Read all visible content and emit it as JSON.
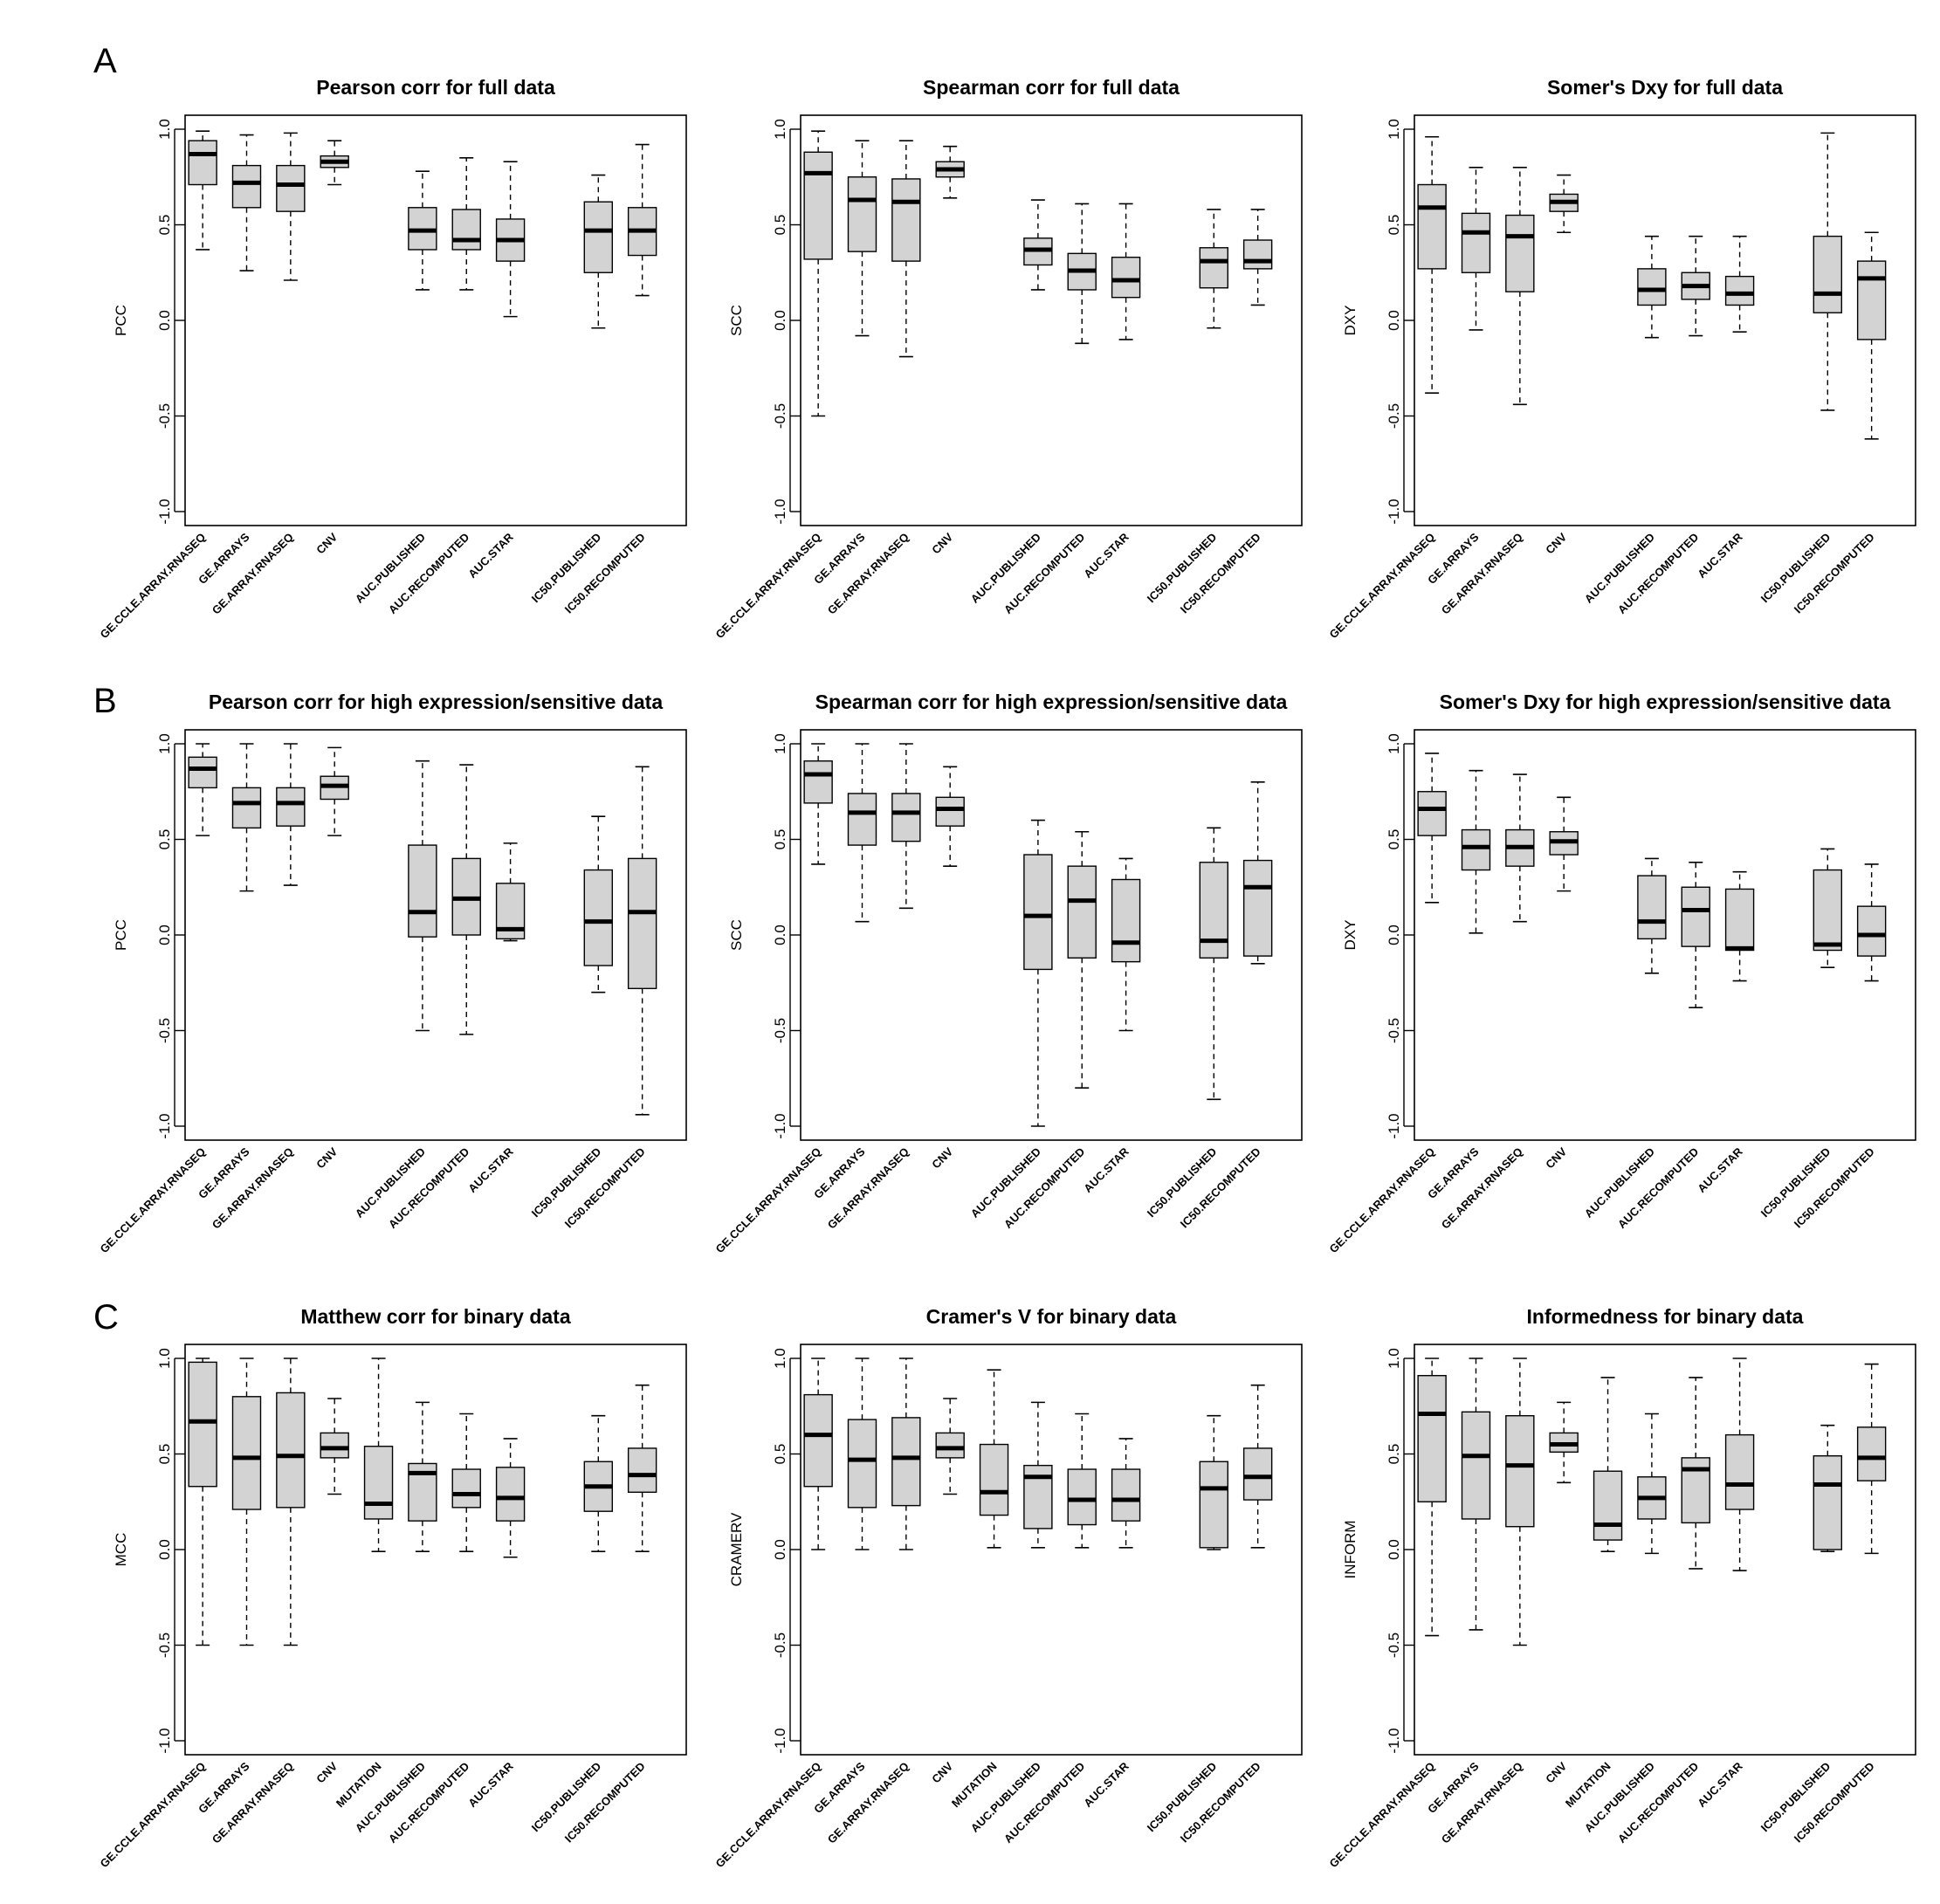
{
  "panels": [
    "A",
    "B",
    "C"
  ],
  "box_style": {
    "fill": "#d3d3d3",
    "stroke": "#000000"
  },
  "chart_data": [
    {
      "type": "boxplot",
      "title": "Pearson corr for full data",
      "ylabel": "PCC",
      "ylim": [
        -1.0,
        1.0
      ],
      "yticks": [
        "-1.0",
        "-0.5",
        "0.0",
        "0.5",
        "1.0"
      ],
      "ytick_values": [
        -1.0,
        -0.5,
        0.0,
        0.5,
        1.0
      ],
      "boxes": [
        {
          "label": "GE.CCLE.ARRAY.RNASEQ",
          "pos": 1,
          "min": 0.37,
          "q1": 0.71,
          "median": 0.87,
          "q3": 0.94,
          "max": 0.99
        },
        {
          "label": "GE.ARRAYS",
          "pos": 2,
          "min": 0.26,
          "q1": 0.59,
          "median": 0.72,
          "q3": 0.81,
          "max": 0.97
        },
        {
          "label": "GE.ARRAY.RNASEQ",
          "pos": 3,
          "min": 0.21,
          "q1": 0.57,
          "median": 0.71,
          "q3": 0.81,
          "max": 0.98
        },
        {
          "label": "CNV",
          "pos": 4,
          "min": 0.71,
          "q1": 0.8,
          "median": 0.83,
          "q3": 0.86,
          "max": 0.94
        },
        {
          "label": "AUC.PUBLISHED",
          "pos": 6,
          "min": 0.16,
          "q1": 0.37,
          "median": 0.47,
          "q3": 0.59,
          "max": 0.78
        },
        {
          "label": "AUC.RECOMPUTED",
          "pos": 7,
          "min": 0.16,
          "q1": 0.37,
          "median": 0.42,
          "q3": 0.58,
          "max": 0.85
        },
        {
          "label": "AUC.STAR",
          "pos": 8,
          "min": 0.02,
          "q1": 0.31,
          "median": 0.42,
          "q3": 0.53,
          "max": 0.83
        },
        {
          "label": "IC50.PUBLISHED",
          "pos": 10,
          "min": -0.04,
          "q1": 0.25,
          "median": 0.47,
          "q3": 0.62,
          "max": 0.76
        },
        {
          "label": "IC50.RECOMPUTED",
          "pos": 11,
          "min": 0.13,
          "q1": 0.34,
          "median": 0.47,
          "q3": 0.59,
          "max": 0.92
        }
      ]
    },
    {
      "type": "boxplot",
      "title": "Spearman corr for full data",
      "ylabel": "SCC",
      "ylim": [
        -1.0,
        1.0
      ],
      "yticks": [
        "-1.0",
        "-0.5",
        "0.0",
        "0.5",
        "1.0"
      ],
      "ytick_values": [
        -1.0,
        -0.5,
        0.0,
        0.5,
        1.0
      ],
      "boxes": [
        {
          "label": "GE.CCLE.ARRAY.RNASEQ",
          "pos": 1,
          "min": -0.5,
          "q1": 0.32,
          "median": 0.77,
          "q3": 0.88,
          "max": 0.99
        },
        {
          "label": "GE.ARRAYS",
          "pos": 2,
          "min": -0.08,
          "q1": 0.36,
          "median": 0.63,
          "q3": 0.75,
          "max": 0.94
        },
        {
          "label": "GE.ARRAY.RNASEQ",
          "pos": 3,
          "min": -0.19,
          "q1": 0.31,
          "median": 0.62,
          "q3": 0.74,
          "max": 0.94
        },
        {
          "label": "CNV",
          "pos": 4,
          "min": 0.64,
          "q1": 0.75,
          "median": 0.79,
          "q3": 0.83,
          "max": 0.91
        },
        {
          "label": "AUC.PUBLISHED",
          "pos": 6,
          "min": 0.16,
          "q1": 0.29,
          "median": 0.37,
          "q3": 0.43,
          "max": 0.63
        },
        {
          "label": "AUC.RECOMPUTED",
          "pos": 7,
          "min": -0.12,
          "q1": 0.16,
          "median": 0.26,
          "q3": 0.35,
          "max": 0.61
        },
        {
          "label": "AUC.STAR",
          "pos": 8,
          "min": -0.1,
          "q1": 0.12,
          "median": 0.21,
          "q3": 0.33,
          "max": 0.61
        },
        {
          "label": "IC50.PUBLISHED",
          "pos": 10,
          "min": -0.04,
          "q1": 0.17,
          "median": 0.31,
          "q3": 0.38,
          "max": 0.58
        },
        {
          "label": "IC50.RECOMPUTED",
          "pos": 11,
          "min": 0.08,
          "q1": 0.27,
          "median": 0.31,
          "q3": 0.42,
          "max": 0.58
        }
      ]
    },
    {
      "type": "boxplot",
      "title": "Somer's Dxy for full data",
      "ylabel": "DXY",
      "ylim": [
        -1.0,
        1.0
      ],
      "yticks": [
        "-1.0",
        "-0.5",
        "0.0",
        "0.5",
        "1.0"
      ],
      "ytick_values": [
        -1.0,
        -0.5,
        0.0,
        0.5,
        1.0
      ],
      "boxes": [
        {
          "label": "GE.CCLE.ARRAY.RNASEQ",
          "pos": 1,
          "min": -0.38,
          "q1": 0.27,
          "median": 0.59,
          "q3": 0.71,
          "max": 0.96
        },
        {
          "label": "GE.ARRAYS",
          "pos": 2,
          "min": -0.05,
          "q1": 0.25,
          "median": 0.46,
          "q3": 0.56,
          "max": 0.8
        },
        {
          "label": "GE.ARRAY.RNASEQ",
          "pos": 3,
          "min": -0.44,
          "q1": 0.15,
          "median": 0.44,
          "q3": 0.55,
          "max": 0.8
        },
        {
          "label": "CNV",
          "pos": 4,
          "min": 0.46,
          "q1": 0.57,
          "median": 0.62,
          "q3": 0.66,
          "max": 0.76
        },
        {
          "label": "AUC.PUBLISHED",
          "pos": 6,
          "min": -0.09,
          "q1": 0.08,
          "median": 0.16,
          "q3": 0.27,
          "max": 0.44
        },
        {
          "label": "AUC.RECOMPUTED",
          "pos": 7,
          "min": -0.08,
          "q1": 0.11,
          "median": 0.18,
          "q3": 0.25,
          "max": 0.44
        },
        {
          "label": "AUC.STAR",
          "pos": 8,
          "min": -0.06,
          "q1": 0.08,
          "median": 0.14,
          "q3": 0.23,
          "max": 0.44
        },
        {
          "label": "IC50.PUBLISHED",
          "pos": 10,
          "min": -0.47,
          "q1": 0.04,
          "median": 0.14,
          "q3": 0.44,
          "max": 0.98
        },
        {
          "label": "IC50.RECOMPUTED",
          "pos": 11,
          "min": -0.62,
          "q1": -0.1,
          "median": 0.22,
          "q3": 0.31,
          "max": 0.46
        }
      ]
    },
    {
      "type": "boxplot",
      "title": "Pearson corr for high expression/sensitive data",
      "ylabel": "PCC",
      "ylim": [
        -1.0,
        1.0
      ],
      "yticks": [
        "-1.0",
        "-0.5",
        "0.0",
        "0.5",
        "1.0"
      ],
      "ytick_values": [
        -1.0,
        -0.5,
        0.0,
        0.5,
        1.0
      ],
      "boxes": [
        {
          "label": "GE.CCLE.ARRAY.RNASEQ",
          "pos": 1,
          "min": 0.52,
          "q1": 0.77,
          "median": 0.87,
          "q3": 0.93,
          "max": 1.0
        },
        {
          "label": "GE.ARRAYS",
          "pos": 2,
          "min": 0.23,
          "q1": 0.56,
          "median": 0.69,
          "q3": 0.77,
          "max": 1.0
        },
        {
          "label": "GE.ARRAY.RNASEQ",
          "pos": 3,
          "min": 0.26,
          "q1": 0.57,
          "median": 0.69,
          "q3": 0.77,
          "max": 1.0
        },
        {
          "label": "CNV",
          "pos": 4,
          "min": 0.52,
          "q1": 0.71,
          "median": 0.78,
          "q3": 0.83,
          "max": 0.98
        },
        {
          "label": "AUC.PUBLISHED",
          "pos": 6,
          "min": -0.5,
          "q1": -0.01,
          "median": 0.12,
          "q3": 0.47,
          "max": 0.91
        },
        {
          "label": "AUC.RECOMPUTED",
          "pos": 7,
          "min": -0.52,
          "q1": 0.0,
          "median": 0.19,
          "q3": 0.4,
          "max": 0.89
        },
        {
          "label": "AUC.STAR",
          "pos": 8,
          "min": -0.03,
          "q1": -0.02,
          "median": 0.03,
          "q3": 0.27,
          "max": 0.48
        },
        {
          "label": "IC50.PUBLISHED",
          "pos": 10,
          "min": -0.3,
          "q1": -0.16,
          "median": 0.07,
          "q3": 0.34,
          "max": 0.62
        },
        {
          "label": "IC50.RECOMPUTED",
          "pos": 11,
          "min": -0.94,
          "q1": -0.28,
          "median": 0.12,
          "q3": 0.4,
          "max": 0.88
        }
      ]
    },
    {
      "type": "boxplot",
      "title": "Spearman corr for high expression/sensitive data",
      "ylabel": "SCC",
      "ylim": [
        -1.0,
        1.0
      ],
      "yticks": [
        "-1.0",
        "-0.5",
        "0.0",
        "0.5",
        "1.0"
      ],
      "ytick_values": [
        -1.0,
        -0.5,
        0.0,
        0.5,
        1.0
      ],
      "boxes": [
        {
          "label": "GE.CCLE.ARRAY.RNASEQ",
          "pos": 1,
          "min": 0.37,
          "q1": 0.69,
          "median": 0.84,
          "q3": 0.91,
          "max": 1.0
        },
        {
          "label": "GE.ARRAYS",
          "pos": 2,
          "min": 0.07,
          "q1": 0.47,
          "median": 0.64,
          "q3": 0.74,
          "max": 1.0
        },
        {
          "label": "GE.ARRAY.RNASEQ",
          "pos": 3,
          "min": 0.14,
          "q1": 0.49,
          "median": 0.64,
          "q3": 0.74,
          "max": 1.0
        },
        {
          "label": "CNV",
          "pos": 4,
          "min": 0.36,
          "q1": 0.57,
          "median": 0.66,
          "q3": 0.72,
          "max": 0.88
        },
        {
          "label": "AUC.PUBLISHED",
          "pos": 6,
          "min": -1.0,
          "q1": -0.18,
          "median": 0.1,
          "q3": 0.42,
          "max": 0.6
        },
        {
          "label": "AUC.RECOMPUTED",
          "pos": 7,
          "min": -0.8,
          "q1": -0.12,
          "median": 0.18,
          "q3": 0.36,
          "max": 0.54
        },
        {
          "label": "AUC.STAR",
          "pos": 8,
          "min": -0.5,
          "q1": -0.14,
          "median": -0.04,
          "q3": 0.29,
          "max": 0.4
        },
        {
          "label": "IC50.PUBLISHED",
          "pos": 10,
          "min": -0.86,
          "q1": -0.12,
          "median": -0.03,
          "q3": 0.38,
          "max": 0.56
        },
        {
          "label": "IC50.RECOMPUTED",
          "pos": 11,
          "min": -0.15,
          "q1": -0.11,
          "median": 0.25,
          "q3": 0.39,
          "max": 0.8
        }
      ]
    },
    {
      "type": "boxplot",
      "title": "Somer's Dxy for high expression/sensitive data",
      "ylabel": "DXY",
      "ylim": [
        -1.0,
        1.0
      ],
      "yticks": [
        "-1.0",
        "-0.5",
        "0.0",
        "0.5",
        "1.0"
      ],
      "ytick_values": [
        -1.0,
        -0.5,
        0.0,
        0.5,
        1.0
      ],
      "boxes": [
        {
          "label": "GE.CCLE.ARRAY.RNASEQ",
          "pos": 1,
          "min": 0.17,
          "q1": 0.52,
          "median": 0.66,
          "q3": 0.75,
          "max": 0.95
        },
        {
          "label": "GE.ARRAYS",
          "pos": 2,
          "min": 0.01,
          "q1": 0.34,
          "median": 0.46,
          "q3": 0.55,
          "max": 0.86
        },
        {
          "label": "GE.ARRAY.RNASEQ",
          "pos": 3,
          "min": 0.07,
          "q1": 0.36,
          "median": 0.46,
          "q3": 0.55,
          "max": 0.84
        },
        {
          "label": "CNV",
          "pos": 4,
          "min": 0.23,
          "q1": 0.42,
          "median": 0.49,
          "q3": 0.54,
          "max": 0.72
        },
        {
          "label": "AUC.PUBLISHED",
          "pos": 6,
          "min": -0.2,
          "q1": -0.02,
          "median": 0.07,
          "q3": 0.31,
          "max": 0.4
        },
        {
          "label": "AUC.RECOMPUTED",
          "pos": 7,
          "min": -0.38,
          "q1": -0.06,
          "median": 0.13,
          "q3": 0.25,
          "max": 0.38
        },
        {
          "label": "AUC.STAR",
          "pos": 8,
          "min": -0.24,
          "q1": -0.08,
          "median": -0.07,
          "q3": 0.24,
          "max": 0.33
        },
        {
          "label": "IC50.PUBLISHED",
          "pos": 10,
          "min": -0.17,
          "q1": -0.08,
          "median": -0.05,
          "q3": 0.34,
          "max": 0.45
        },
        {
          "label": "IC50.RECOMPUTED",
          "pos": 11,
          "min": -0.24,
          "q1": -0.11,
          "median": 0.0,
          "q3": 0.15,
          "max": 0.37
        }
      ]
    },
    {
      "type": "boxplot",
      "title": "Matthew corr for binary data",
      "ylabel": "MCC",
      "ylim": [
        -1.0,
        1.0
      ],
      "yticks": [
        "-1.0",
        "-0.5",
        "0.0",
        "0.5",
        "1.0"
      ],
      "ytick_values": [
        -1.0,
        -0.5,
        0.0,
        0.5,
        1.0
      ],
      "boxes": [
        {
          "label": "GE.CCLE.ARRAY.RNASEQ",
          "pos": 1,
          "min": -0.5,
          "q1": 0.33,
          "median": 0.67,
          "q3": 0.98,
          "max": 1.0
        },
        {
          "label": "GE.ARRAYS",
          "pos": 2,
          "min": -0.5,
          "q1": 0.21,
          "median": 0.48,
          "q3": 0.8,
          "max": 1.0
        },
        {
          "label": "GE.ARRAY.RNASEQ",
          "pos": 3,
          "min": -0.5,
          "q1": 0.22,
          "median": 0.49,
          "q3": 0.82,
          "max": 1.0
        },
        {
          "label": "CNV",
          "pos": 4,
          "min": 0.29,
          "q1": 0.48,
          "median": 0.53,
          "q3": 0.61,
          "max": 0.79
        },
        {
          "label": "MUTATION",
          "pos": 5,
          "min": -0.01,
          "q1": 0.16,
          "median": 0.24,
          "q3": 0.54,
          "max": 1.0
        },
        {
          "label": "AUC.PUBLISHED",
          "pos": 6,
          "min": -0.01,
          "q1": 0.15,
          "median": 0.4,
          "q3": 0.45,
          "max": 0.77
        },
        {
          "label": "AUC.RECOMPUTED",
          "pos": 7,
          "min": -0.01,
          "q1": 0.22,
          "median": 0.29,
          "q3": 0.42,
          "max": 0.71
        },
        {
          "label": "AUC.STAR",
          "pos": 8,
          "min": -0.04,
          "q1": 0.15,
          "median": 0.27,
          "q3": 0.43,
          "max": 0.58
        },
        {
          "label": "IC50.PUBLISHED",
          "pos": 10,
          "min": -0.01,
          "q1": 0.2,
          "median": 0.33,
          "q3": 0.46,
          "max": 0.7
        },
        {
          "label": "IC50.RECOMPUTED",
          "pos": 11,
          "min": -0.01,
          "q1": 0.3,
          "median": 0.39,
          "q3": 0.53,
          "max": 0.86
        }
      ]
    },
    {
      "type": "boxplot",
      "title": "Cramer's V for binary data",
      "ylabel": "CRAMERV",
      "ylim": [
        -1.0,
        1.0
      ],
      "yticks": [
        "-1.0",
        "-0.5",
        "0.0",
        "0.5",
        "1.0"
      ],
      "ytick_values": [
        -1.0,
        -0.5,
        0.0,
        0.5,
        1.0
      ],
      "boxes": [
        {
          "label": "GE.CCLE.ARRAY.RNASEQ",
          "pos": 1,
          "min": 0.0,
          "q1": 0.33,
          "median": 0.6,
          "q3": 0.81,
          "max": 1.0
        },
        {
          "label": "GE.ARRAYS",
          "pos": 2,
          "min": 0.0,
          "q1": 0.22,
          "median": 0.47,
          "q3": 0.68,
          "max": 1.0
        },
        {
          "label": "GE.ARRAY.RNASEQ",
          "pos": 3,
          "min": 0.0,
          "q1": 0.23,
          "median": 0.48,
          "q3": 0.69,
          "max": 1.0
        },
        {
          "label": "CNV",
          "pos": 4,
          "min": 0.29,
          "q1": 0.48,
          "median": 0.53,
          "q3": 0.61,
          "max": 0.79
        },
        {
          "label": "MUTATION",
          "pos": 5,
          "min": 0.01,
          "q1": 0.18,
          "median": 0.3,
          "q3": 0.55,
          "max": 0.94
        },
        {
          "label": "AUC.PUBLISHED",
          "pos": 6,
          "min": 0.01,
          "q1": 0.11,
          "median": 0.38,
          "q3": 0.44,
          "max": 0.77
        },
        {
          "label": "AUC.RECOMPUTED",
          "pos": 7,
          "min": 0.01,
          "q1": 0.13,
          "median": 0.26,
          "q3": 0.42,
          "max": 0.71
        },
        {
          "label": "AUC.STAR",
          "pos": 8,
          "min": 0.01,
          "q1": 0.15,
          "median": 0.26,
          "q3": 0.42,
          "max": 0.58
        },
        {
          "label": "IC50.PUBLISHED",
          "pos": 10,
          "min": 0.0,
          "q1": 0.01,
          "median": 0.32,
          "q3": 0.46,
          "max": 0.7
        },
        {
          "label": "IC50.RECOMPUTED",
          "pos": 11,
          "min": 0.01,
          "q1": 0.26,
          "median": 0.38,
          "q3": 0.53,
          "max": 0.86
        }
      ]
    },
    {
      "type": "boxplot",
      "title": "Informedness for binary data",
      "ylabel": "INFORM",
      "ylim": [
        -1.0,
        1.0
      ],
      "yticks": [
        "-1.0",
        "-0.5",
        "0.0",
        "0.5",
        "1.0"
      ],
      "ytick_values": [
        -1.0,
        -0.5,
        0.0,
        0.5,
        1.0
      ],
      "boxes": [
        {
          "label": "GE.CCLE.ARRAY.RNASEQ",
          "pos": 1,
          "min": -0.45,
          "q1": 0.25,
          "median": 0.71,
          "q3": 0.91,
          "max": 1.0
        },
        {
          "label": "GE.ARRAYS",
          "pos": 2,
          "min": -0.42,
          "q1": 0.16,
          "median": 0.49,
          "q3": 0.72,
          "max": 1.0
        },
        {
          "label": "GE.ARRAY.RNASEQ",
          "pos": 3,
          "min": -0.5,
          "q1": 0.12,
          "median": 0.44,
          "q3": 0.7,
          "max": 1.0
        },
        {
          "label": "CNV",
          "pos": 4,
          "min": 0.35,
          "q1": 0.51,
          "median": 0.55,
          "q3": 0.61,
          "max": 0.77
        },
        {
          "label": "MUTATION",
          "pos": 5,
          "min": -0.01,
          "q1": 0.05,
          "median": 0.13,
          "q3": 0.41,
          "max": 0.9
        },
        {
          "label": "AUC.PUBLISHED",
          "pos": 6,
          "min": -0.02,
          "q1": 0.16,
          "median": 0.27,
          "q3": 0.38,
          "max": 0.71
        },
        {
          "label": "AUC.RECOMPUTED",
          "pos": 7,
          "min": -0.1,
          "q1": 0.14,
          "median": 0.42,
          "q3": 0.48,
          "max": 0.9
        },
        {
          "label": "AUC.STAR",
          "pos": 8,
          "min": -0.11,
          "q1": 0.21,
          "median": 0.34,
          "q3": 0.6,
          "max": 1.0
        },
        {
          "label": "IC50.PUBLISHED",
          "pos": 10,
          "min": -0.01,
          "q1": 0.0,
          "median": 0.34,
          "q3": 0.49,
          "max": 0.65
        },
        {
          "label": "IC50.RECOMPUTED",
          "pos": 11,
          "min": -0.02,
          "q1": 0.36,
          "median": 0.48,
          "q3": 0.64,
          "max": 0.97
        }
      ]
    }
  ]
}
